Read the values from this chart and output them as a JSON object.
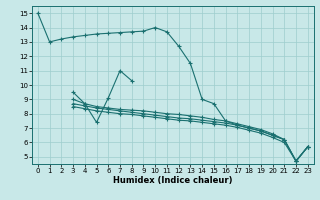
{
  "xlabel": "Humidex (Indice chaleur)",
  "bg_color": "#c8e8e8",
  "line_color": "#1a7070",
  "grid_color": "#9ecece",
  "xlim": [
    -0.5,
    23.5
  ],
  "ylim": [
    4.5,
    15.5
  ],
  "xticks": [
    0,
    1,
    2,
    3,
    4,
    5,
    6,
    7,
    8,
    9,
    10,
    11,
    12,
    13,
    14,
    15,
    16,
    17,
    18,
    19,
    20,
    21,
    22,
    23
  ],
  "yticks": [
    5,
    6,
    7,
    8,
    9,
    10,
    11,
    12,
    13,
    14,
    15
  ],
  "line1_x": [
    0,
    1,
    2,
    3,
    4,
    5,
    6,
    7,
    8,
    9,
    10,
    11,
    12,
    13,
    14,
    15,
    16,
    17,
    18,
    19,
    20,
    21,
    22,
    23
  ],
  "line1_y": [
    15,
    13,
    13.2,
    13.35,
    13.45,
    13.55,
    13.6,
    13.65,
    13.7,
    13.75,
    14.0,
    13.7,
    12.7,
    11.5,
    9.0,
    8.7,
    7.5,
    7.2,
    7.0,
    6.8,
    6.5,
    6.2,
    4.7,
    5.7
  ],
  "line2_x": [
    3,
    4,
    5,
    6,
    7,
    8
  ],
  "line2_y": [
    9.5,
    8.7,
    7.4,
    9.1,
    11.0,
    10.3
  ],
  "line3_x": [
    3,
    4,
    5,
    6,
    7,
    8,
    9,
    10,
    11,
    12,
    13,
    14,
    15,
    16,
    17,
    18,
    19,
    20,
    21,
    22,
    23
  ],
  "line3_y": [
    9.0,
    8.7,
    8.5,
    8.4,
    8.3,
    8.25,
    8.2,
    8.1,
    8.0,
    7.95,
    7.85,
    7.75,
    7.6,
    7.5,
    7.3,
    7.1,
    6.9,
    6.6,
    6.2,
    4.7,
    5.7
  ],
  "line4_x": [
    3,
    4,
    5,
    6,
    7,
    8,
    9,
    10,
    11,
    12,
    13,
    14,
    15,
    16,
    17,
    18,
    19,
    20,
    21,
    22,
    23
  ],
  "line4_y": [
    8.7,
    8.55,
    8.4,
    8.3,
    8.2,
    8.1,
    8.0,
    7.9,
    7.8,
    7.7,
    7.65,
    7.55,
    7.45,
    7.35,
    7.2,
    7.0,
    6.8,
    6.5,
    6.2,
    4.7,
    5.7
  ],
  "line5_x": [
    3,
    4,
    5,
    6,
    7,
    8,
    9,
    10,
    11,
    12,
    13,
    14,
    15,
    16,
    17,
    18,
    19,
    20,
    21,
    22,
    23
  ],
  "line5_y": [
    8.5,
    8.35,
    8.2,
    8.1,
    8.0,
    7.95,
    7.85,
    7.75,
    7.65,
    7.55,
    7.5,
    7.4,
    7.3,
    7.2,
    7.05,
    6.85,
    6.65,
    6.35,
    6.0,
    4.7,
    5.7
  ]
}
